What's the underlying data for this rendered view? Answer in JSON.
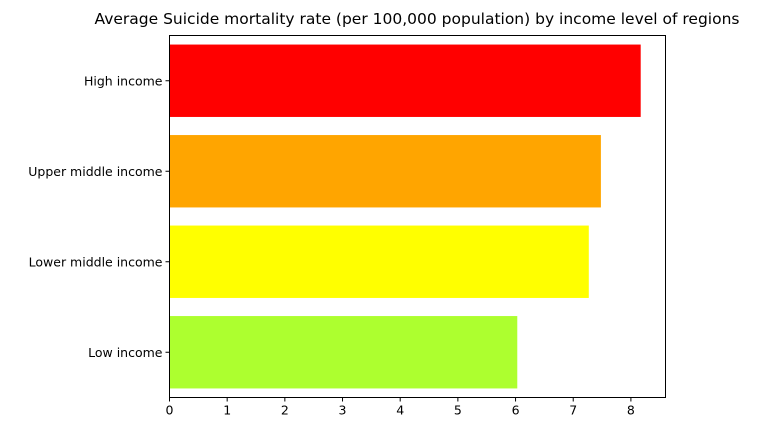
{
  "chart_data": {
    "type": "bar",
    "orientation": "horizontal",
    "title": "Average Suicide mortality rate (per 100,000 population) by income level of regions",
    "xlabel": "",
    "ylabel": "",
    "categories": [
      "High income",
      "Upper middle income",
      "Lower middle income",
      "Low income"
    ],
    "values": [
      8.17,
      7.48,
      7.27,
      6.03
    ],
    "colors": [
      "#ff0000",
      "#ffa500",
      "#ffff00",
      "#adff2f"
    ],
    "xlim": [
      0,
      8.6
    ],
    "xticks": [
      0,
      1,
      2,
      3,
      4,
      5,
      6,
      7,
      8
    ],
    "grid": false,
    "legend": "none"
  }
}
